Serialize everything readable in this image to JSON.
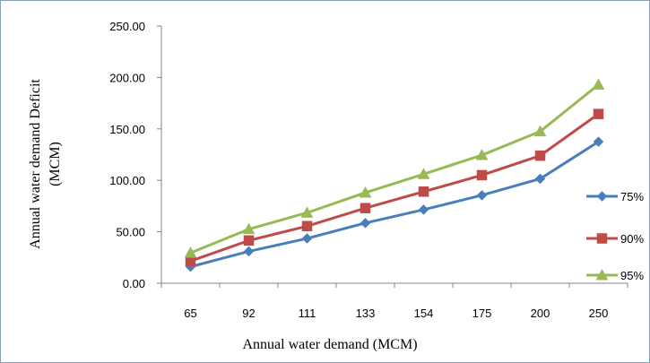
{
  "chart_data": {
    "type": "line",
    "categories": [
      "65",
      "92",
      "111",
      "133",
      "154",
      "175",
      "200",
      "250"
    ],
    "series": [
      {
        "name": "75%",
        "values": [
          16,
          31,
          43.5,
          58.5,
          71.5,
          85.5,
          101.5,
          137.5
        ],
        "color": "#4a7ebb",
        "marker": "diamond"
      },
      {
        "name": "90%",
        "values": [
          21.5,
          41.5,
          55.5,
          73,
          89,
          105,
          124,
          164.5
        ],
        "color": "#be4b48",
        "marker": "square"
      },
      {
        "name": "95%",
        "values": [
          29.5,
          52.5,
          68.5,
          88,
          106,
          124.5,
          147.5,
          193
        ],
        "color": "#98b954",
        "marker": "triangle"
      }
    ],
    "yticks": [
      "0.00",
      "50.00",
      "100.00",
      "150.00",
      "200.00",
      "250.00"
    ],
    "ylim": [
      0,
      250
    ],
    "xlabel": "Annual water demand (MCM)",
    "ylabel_line1": "Annual water demand Deficit",
    "ylabel_line2": "(MCM)",
    "legend_position": "right",
    "grid": false
  }
}
